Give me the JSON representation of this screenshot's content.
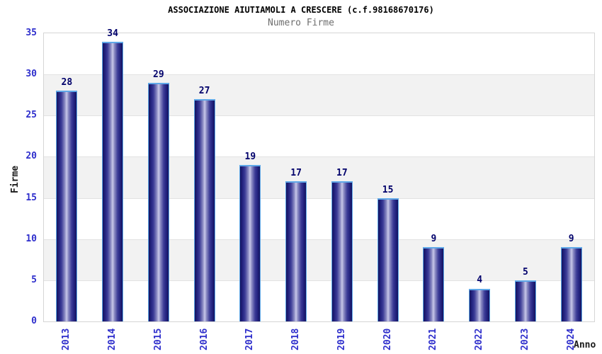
{
  "header": {
    "title": "ASSOCIAZIONE AIUTIAMOLI A CRESCERE (c.f.98168670176)",
    "subtitle": "Numero Firme"
  },
  "axes": {
    "y_label": "Firme",
    "x_label": "Anno",
    "y_ticks": [
      0,
      5,
      10,
      15,
      20,
      25,
      30,
      35
    ]
  },
  "chart_data": {
    "type": "bar",
    "title": "ASSOCIAZIONE AIUTIAMOLI A CRESCERE (c.f.98168670176)",
    "subtitle": "Numero Firme",
    "xlabel": "Anno",
    "ylabel": "Firme",
    "categories": [
      "2013",
      "2014",
      "2015",
      "2016",
      "2017",
      "2018",
      "2019",
      "2020",
      "2021",
      "2022",
      "2023",
      "2024"
    ],
    "values": [
      28,
      34,
      29,
      27,
      19,
      17,
      17,
      15,
      9,
      4,
      5,
      9
    ],
    "ylim": [
      0,
      35
    ],
    "ytick_step": 5,
    "grid": true,
    "band_fill": "alternating-horizontal"
  },
  "colors": {
    "tick_label": "#2e2ecc",
    "value_label": "#00006b",
    "bar_edge_dark": "#14145f",
    "bar_center_light": "#c9c9ea",
    "bar_outline": "#5fa8e8",
    "band_gray": "#f2f2f2",
    "gridline": "#e2e2e2",
    "plot_border": "#d5d5d5",
    "title": "#000000",
    "subtitle": "#6e6e6e",
    "axis_title": "#1a1a1a"
  }
}
